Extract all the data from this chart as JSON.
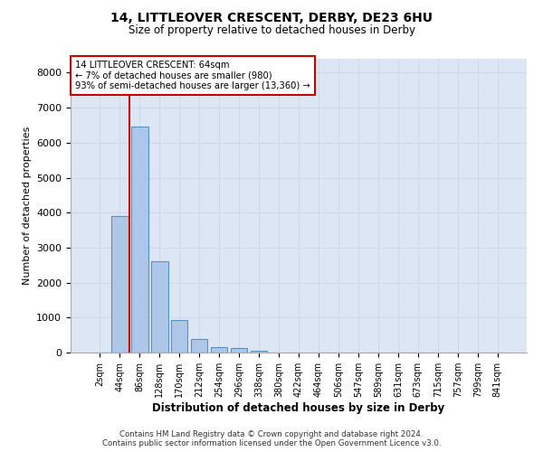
{
  "title_line1": "14, LITTLEOVER CRESCENT, DERBY, DE23 6HU",
  "title_line2": "Size of property relative to detached houses in Derby",
  "xlabel": "Distribution of detached houses by size in Derby",
  "ylabel": "Number of detached properties",
  "categories": [
    "2sqm",
    "44sqm",
    "86sqm",
    "128sqm",
    "170sqm",
    "212sqm",
    "254sqm",
    "296sqm",
    "338sqm",
    "380sqm",
    "422sqm",
    "464sqm",
    "506sqm",
    "547sqm",
    "589sqm",
    "631sqm",
    "673sqm",
    "715sqm",
    "757sqm",
    "799sqm",
    "841sqm"
  ],
  "values": [
    10,
    3900,
    6450,
    2600,
    920,
    390,
    150,
    120,
    60,
    0,
    0,
    0,
    0,
    0,
    0,
    0,
    0,
    0,
    0,
    0,
    0
  ],
  "bar_color": "#aec6e8",
  "bar_edge_color": "#5592c8",
  "vline_color": "#cc0000",
  "vline_x": 1.5,
  "annotation_text": "14 LITTLEOVER CRESCENT: 64sqm\n← 7% of detached houses are smaller (980)\n93% of semi-detached houses are larger (13,360) →",
  "annotation_box_color": "#ffffff",
  "annotation_box_edge": "#cc0000",
  "ylim": [
    0,
    8400
  ],
  "yticks": [
    0,
    1000,
    2000,
    3000,
    4000,
    5000,
    6000,
    7000,
    8000
  ],
  "grid_color": "#d0d8e8",
  "background_color": "#dce6f5",
  "footer_line1": "Contains HM Land Registry data © Crown copyright and database right 2024.",
  "footer_line2": "Contains public sector information licensed under the Open Government Licence v3.0."
}
